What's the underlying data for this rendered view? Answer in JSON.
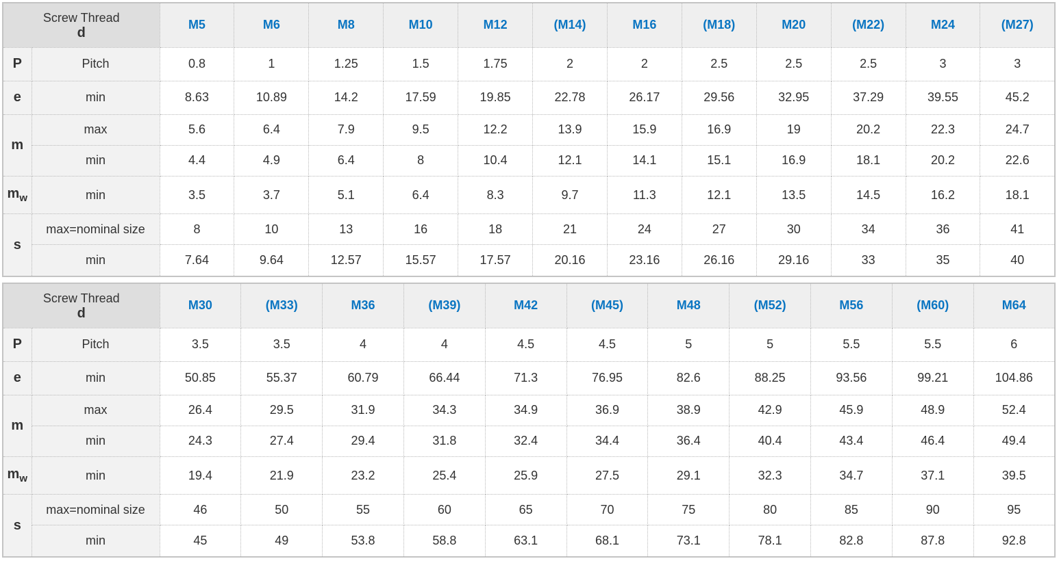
{
  "header": {
    "title": "Screw Thread",
    "symbol": "d"
  },
  "rows": [
    {
      "symbol": "P",
      "label": "Pitch"
    },
    {
      "symbol": "e",
      "label": "min"
    },
    {
      "symbol": "m",
      "label": "max"
    },
    {
      "symbol": "",
      "label": "min"
    },
    {
      "symbol": "m",
      "subscript": "w",
      "label": "min"
    },
    {
      "symbol": "s",
      "label": "max=nominal size"
    },
    {
      "symbol": "",
      "label": "min"
    }
  ],
  "tables": [
    {
      "sizes": [
        "M5",
        "M6",
        "M8",
        "M10",
        "M12",
        "(M14)",
        "M16",
        "(M18)",
        "M20",
        "(M22)",
        "M24",
        "(M27)"
      ],
      "values": [
        [
          "0.8",
          "1",
          "1.25",
          "1.5",
          "1.75",
          "2",
          "2",
          "2.5",
          "2.5",
          "2.5",
          "3",
          "3"
        ],
        [
          "8.63",
          "10.89",
          "14.2",
          "17.59",
          "19.85",
          "22.78",
          "26.17",
          "29.56",
          "32.95",
          "37.29",
          "39.55",
          "45.2"
        ],
        [
          "5.6",
          "6.4",
          "7.9",
          "9.5",
          "12.2",
          "13.9",
          "15.9",
          "16.9",
          "19",
          "20.2",
          "22.3",
          "24.7"
        ],
        [
          "4.4",
          "4.9",
          "6.4",
          "8",
          "10.4",
          "12.1",
          "14.1",
          "15.1",
          "16.9",
          "18.1",
          "20.2",
          "22.6"
        ],
        [
          "3.5",
          "3.7",
          "5.1",
          "6.4",
          "8.3",
          "9.7",
          "11.3",
          "12.1",
          "13.5",
          "14.5",
          "16.2",
          "18.1"
        ],
        [
          "8",
          "10",
          "13",
          "16",
          "18",
          "21",
          "24",
          "27",
          "30",
          "34",
          "36",
          "41"
        ],
        [
          "7.64",
          "9.64",
          "12.57",
          "15.57",
          "17.57",
          "20.16",
          "23.16",
          "26.16",
          "29.16",
          "33",
          "35",
          "40"
        ]
      ]
    },
    {
      "sizes": [
        "M30",
        "(M33)",
        "M36",
        "(M39)",
        "M42",
        "(M45)",
        "M48",
        "(M52)",
        "M56",
        "(M60)",
        "M64"
      ],
      "values": [
        [
          "3.5",
          "3.5",
          "4",
          "4",
          "4.5",
          "4.5",
          "5",
          "5",
          "5.5",
          "5.5",
          "6"
        ],
        [
          "50.85",
          "55.37",
          "60.79",
          "66.44",
          "71.3",
          "76.95",
          "82.6",
          "88.25",
          "93.56",
          "99.21",
          "104.86"
        ],
        [
          "26.4",
          "29.5",
          "31.9",
          "34.3",
          "34.9",
          "36.9",
          "38.9",
          "42.9",
          "45.9",
          "48.9",
          "52.4"
        ],
        [
          "24.3",
          "27.4",
          "29.4",
          "31.8",
          "32.4",
          "34.4",
          "36.4",
          "40.4",
          "43.4",
          "46.4",
          "49.4"
        ],
        [
          "19.4",
          "21.9",
          "23.2",
          "25.4",
          "25.9",
          "27.5",
          "29.1",
          "32.3",
          "34.7",
          "37.1",
          "39.5"
        ],
        [
          "46",
          "50",
          "55",
          "60",
          "65",
          "70",
          "75",
          "80",
          "85",
          "90",
          "95"
        ],
        [
          "45",
          "49",
          "53.8",
          "58.8",
          "63.1",
          "68.1",
          "73.1",
          "78.1",
          "82.8",
          "87.8",
          "92.8"
        ]
      ]
    }
  ],
  "colors": {
    "size_header": "#0a75c2",
    "header_bg": "#efefef",
    "corner_bg": "#dedede",
    "label_bg": "#f2f2f2"
  }
}
